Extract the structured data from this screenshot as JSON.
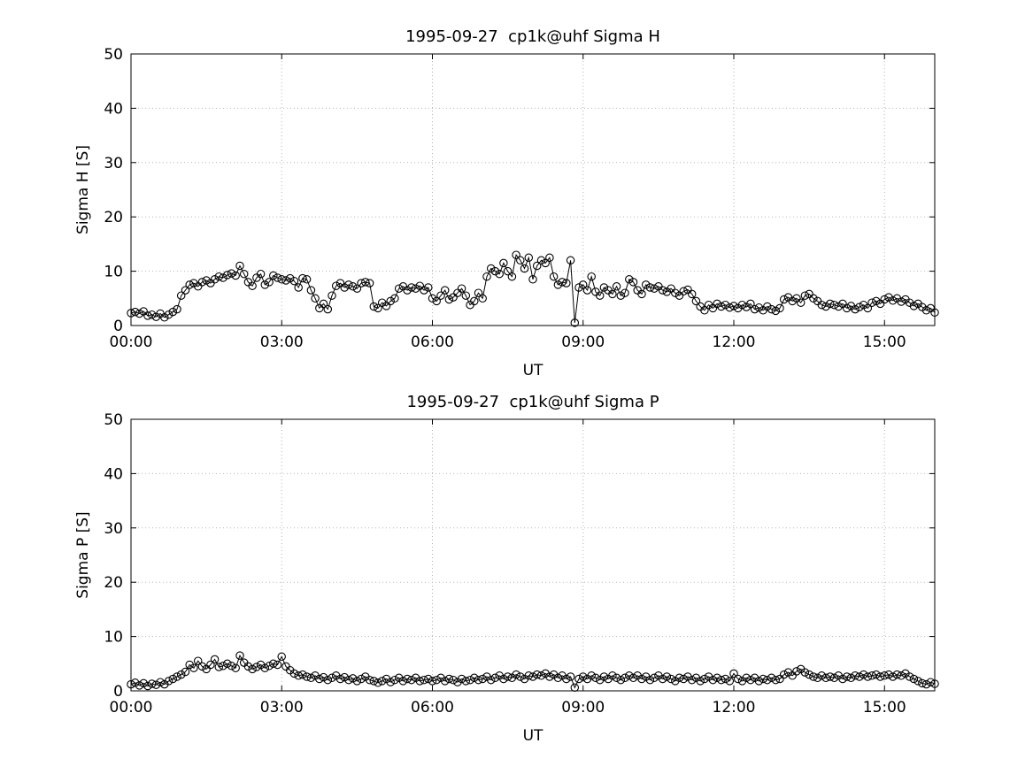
{
  "colors": {
    "line": "#000000",
    "grid": "#b5b5b5",
    "axis": "#000000",
    "background": "#ffffff"
  },
  "chart_data": [
    {
      "type": "line",
      "marker": "open-circle",
      "title": "1995-09-27  cp1k@uhf Sigma H",
      "xlabel": "UT",
      "ylabel": "Sigma H [S]",
      "x_range": [
        0,
        16
      ],
      "y_range": [
        0,
        50
      ],
      "x_ticks": [
        0,
        3,
        6,
        9,
        12,
        15
      ],
      "x_tick_labels": [
        "00:00",
        "03:00",
        "06:00",
        "09:00",
        "12:00",
        "15:00"
      ],
      "y_ticks": [
        0,
        10,
        20,
        30,
        40,
        50
      ],
      "grid": true,
      "legend": "none",
      "x_start": 0,
      "x_step": 0.0833333,
      "x_step_minutes": 5,
      "values": [
        2.3,
        2.5,
        2.2,
        2.6,
        1.8,
        2.0,
        1.6,
        2.2,
        1.5,
        2.0,
        2.5,
        3.0,
        5.5,
        6.5,
        7.5,
        7.8,
        7.2,
        8.0,
        8.3,
        7.8,
        8.5,
        9.0,
        8.8,
        9.3,
        9.6,
        9.2,
        11.0,
        9.5,
        8.0,
        7.3,
        8.8,
        9.5,
        7.5,
        8.0,
        9.2,
        8.8,
        8.5,
        8.3,
        8.7,
        8.2,
        7.0,
        8.7,
        8.5,
        6.5,
        5.0,
        3.2,
        4.0,
        3.0,
        5.5,
        7.3,
        7.8,
        7.0,
        7.5,
        7.2,
        6.8,
        7.8,
        8.0,
        7.8,
        3.5,
        3.2,
        4.2,
        3.6,
        4.5,
        5.0,
        6.8,
        7.2,
        6.5,
        7.0,
        6.8,
        7.3,
        6.5,
        7.0,
        5.0,
        4.5,
        5.5,
        6.5,
        4.8,
        5.2,
        6.0,
        6.8,
        5.5,
        3.8,
        4.5,
        6.0,
        5.0,
        9.0,
        10.5,
        10.0,
        9.5,
        11.5,
        10.0,
        9.0,
        13.0,
        12.0,
        10.5,
        12.5,
        8.5,
        11.0,
        12.0,
        11.5,
        12.5,
        9.0,
        7.5,
        8.0,
        7.8,
        12.0,
        0.5,
        7.0,
        7.5,
        6.5,
        9.0,
        6.2,
        5.5,
        7.0,
        6.5,
        5.8,
        7.2,
        5.5,
        6.0,
        8.5,
        8.0,
        6.5,
        5.8,
        7.5,
        7.0,
        6.8,
        7.2,
        6.5,
        6.2,
        6.8,
        6.0,
        5.5,
        6.3,
        6.6,
        5.8,
        4.5,
        3.5,
        2.8,
        3.8,
        3.2,
        4.0,
        3.5,
        3.8,
        3.3,
        3.6,
        3.2,
        3.8,
        3.4,
        4.0,
        3.0,
        3.3,
        2.8,
        3.5,
        3.0,
        2.7,
        3.2,
        4.8,
        5.2,
        4.5,
        5.0,
        4.2,
        5.5,
        5.8,
        5.0,
        4.5,
        3.8,
        3.5,
        4.0,
        3.8,
        3.5,
        4.0,
        3.2,
        3.6,
        3.0,
        3.4,
        3.8,
        3.2,
        4.2,
        4.5,
        4.0,
        4.8,
        5.2,
        4.6,
        5.0,
        4.4,
        4.8,
        4.2,
        3.6,
        4.0,
        3.4,
        2.8,
        3.2,
        2.4
      ]
    },
    {
      "type": "line",
      "marker": "open-circle",
      "title": "1995-09-27  cp1k@uhf Sigma P",
      "xlabel": "UT",
      "ylabel": "Sigma P [S]",
      "x_range": [
        0,
        16
      ],
      "y_range": [
        0,
        50
      ],
      "x_ticks": [
        0,
        3,
        6,
        9,
        12,
        15
      ],
      "x_tick_labels": [
        "00:00",
        "03:00",
        "06:00",
        "09:00",
        "12:00",
        "15:00"
      ],
      "y_ticks": [
        0,
        10,
        20,
        30,
        40,
        50
      ],
      "grid": true,
      "legend": "none",
      "x_start": 0,
      "x_step": 0.0833333,
      "x_step_minutes": 5,
      "values": [
        1.2,
        1.5,
        1.0,
        1.4,
        0.9,
        1.3,
        1.1,
        1.6,
        1.2,
        1.8,
        2.2,
        2.6,
        3.0,
        3.5,
        4.8,
        4.2,
        5.5,
        4.5,
        4.0,
        4.8,
        5.8,
        4.4,
        4.6,
        5.0,
        4.6,
        4.2,
        6.5,
        5.2,
        4.5,
        4.0,
        4.4,
        4.8,
        4.2,
        4.6,
        5.0,
        4.8,
        6.3,
        4.5,
        3.8,
        3.2,
        2.8,
        3.0,
        2.6,
        2.4,
        2.8,
        2.2,
        2.5,
        2.0,
        2.4,
        2.8,
        2.2,
        2.5,
        2.0,
        2.3,
        1.8,
        2.2,
        2.6,
        2.0,
        1.8,
        1.5,
        1.8,
        2.2,
        1.6,
        2.0,
        2.4,
        1.8,
        2.2,
        2.0,
        2.4,
        1.8,
        2.0,
        2.2,
        1.8,
        2.0,
        2.4,
        1.8,
        2.2,
        2.0,
        1.6,
        2.2,
        1.8,
        2.0,
        2.4,
        2.0,
        2.2,
        2.6,
        2.0,
        2.4,
        2.8,
        2.2,
        2.6,
        2.4,
        3.0,
        2.6,
        2.2,
        2.8,
        2.6,
        3.0,
        2.8,
        3.2,
        2.6,
        3.0,
        2.4,
        2.8,
        2.2,
        2.6,
        0.6,
        2.2,
        2.6,
        2.2,
        2.8,
        2.4,
        2.0,
        2.6,
        2.2,
        2.8,
        2.4,
        2.0,
        2.4,
        2.8,
        2.4,
        2.8,
        2.2,
        2.6,
        2.0,
        2.4,
        2.8,
        2.2,
        2.6,
        2.2,
        1.8,
        2.4,
        2.2,
        2.6,
        2.0,
        2.4,
        1.8,
        2.2,
        2.6,
        2.0,
        2.4,
        2.0,
        2.2,
        1.8,
        3.2,
        2.2,
        1.8,
        2.4,
        2.0,
        2.4,
        1.8,
        2.2,
        2.0,
        2.4,
        2.0,
        2.2,
        3.0,
        3.4,
        2.8,
        3.6,
        4.0,
        3.4,
        3.0,
        2.6,
        2.4,
        2.8,
        2.4,
        2.6,
        2.4,
        2.8,
        2.2,
        2.6,
        2.4,
        2.8,
        2.6,
        3.0,
        2.6,
        2.8,
        3.0,
        2.6,
        2.8,
        3.0,
        2.6,
        3.0,
        2.8,
        3.2,
        2.6,
        2.2,
        1.8,
        1.4,
        1.2,
        1.6,
        1.3
      ]
    }
  ]
}
